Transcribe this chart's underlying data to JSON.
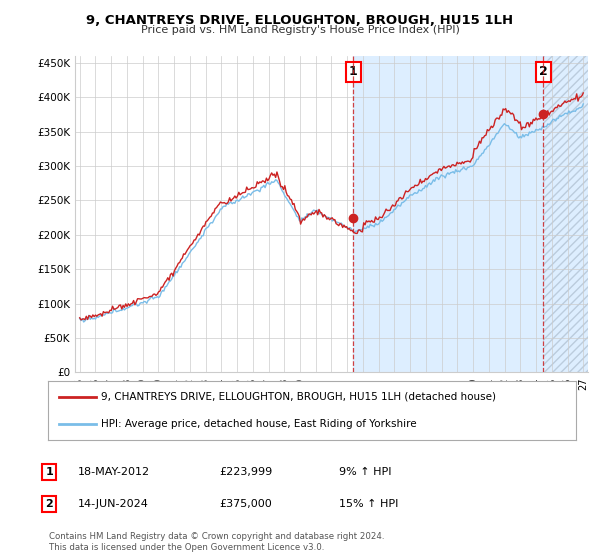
{
  "title": "9, CHANTREYS DRIVE, ELLOUGHTON, BROUGH, HU15 1LH",
  "subtitle": "Price paid vs. HM Land Registry's House Price Index (HPI)",
  "legend_line1": "9, CHANTREYS DRIVE, ELLOUGHTON, BROUGH, HU15 1LH (detached house)",
  "legend_line2": "HPI: Average price, detached house, East Riding of Yorkshire",
  "annotation1_label": "1",
  "annotation1_date": "18-MAY-2012",
  "annotation1_price": "£223,999",
  "annotation1_hpi": "9% ↑ HPI",
  "annotation2_label": "2",
  "annotation2_date": "14-JUN-2024",
  "annotation2_price": "£375,000",
  "annotation2_hpi": "15% ↑ HPI",
  "footer": "Contains HM Land Registry data © Crown copyright and database right 2024.\nThis data is licensed under the Open Government Licence v3.0.",
  "hpi_color": "#7abde8",
  "price_color": "#cc2222",
  "vline_color": "#cc2222",
  "shade_color": "#ddeeff",
  "hatch_color": "#bbccdd",
  "background_color": "#ffffff",
  "grid_color": "#cccccc",
  "ylim": [
    0,
    460000
  ],
  "yticks": [
    0,
    50000,
    100000,
    150000,
    200000,
    250000,
    300000,
    350000,
    400000,
    450000
  ],
  "ytick_labels": [
    "£0",
    "£50K",
    "£100K",
    "£150K",
    "£200K",
    "£250K",
    "£300K",
    "£350K",
    "£400K",
    "£450K"
  ],
  "sale1_x": 2012.38,
  "sale1_y": 223999,
  "sale2_x": 2024.45,
  "sale2_y": 375000,
  "xlim_left": 1994.7,
  "xlim_right": 2027.3
}
